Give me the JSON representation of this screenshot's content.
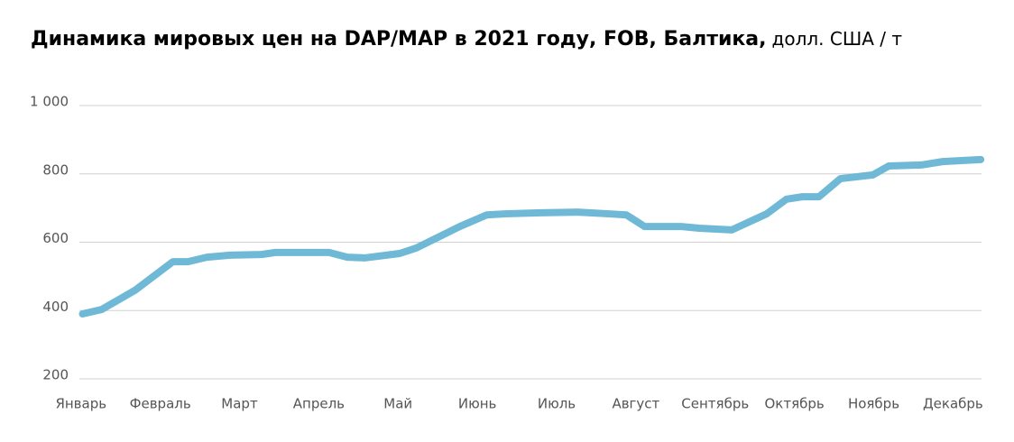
{
  "chart_data": {
    "type": "line",
    "title": "Динамика мировых цен на DAP/MAP в 2021 году, FOB, Балтика,",
    "unit": "долл. США / т",
    "x": [
      0.02,
      0.26,
      0.68,
      1.16,
      1.35,
      1.59,
      1.88,
      2.28,
      2.45,
      3.13,
      3.36,
      3.58,
      4.02,
      4.23,
      4.78,
      5.12,
      5.35,
      5.8,
      6.26,
      6.66,
      6.88,
      7.11,
      7.57,
      7.8,
      8.21,
      8.65,
      8.9,
      9.1,
      9.31,
      9.58,
      9.99,
      10.19,
      10.6,
      10.87,
      11.35
    ],
    "series": [
      {
        "color": "#6fb9d6",
        "values": [
          390,
          403,
          459,
          543,
          543,
          556,
          562,
          564,
          570,
          570,
          556,
          554,
          567,
          583,
          646,
          680,
          683,
          686,
          688,
          683,
          680,
          646,
          646,
          641,
          636,
          683,
          726,
          733,
          733,
          786,
          797,
          823,
          826,
          836,
          842
        ]
      }
    ],
    "xlim": [
      -0.02,
      11.36
    ],
    "xticks": [
      {
        "value": 0,
        "label": "Январь"
      },
      {
        "value": 1,
        "label": "Февраль"
      },
      {
        "value": 2,
        "label": "Март"
      },
      {
        "value": 3,
        "label": "Апрель"
      },
      {
        "value": 4,
        "label": "Май"
      },
      {
        "value": 5,
        "label": "Июнь"
      },
      {
        "value": 6,
        "label": "Июль"
      },
      {
        "value": 7,
        "label": "Август"
      },
      {
        "value": 8,
        "label": "Сентябрь"
      },
      {
        "value": 9,
        "label": "Октябрь"
      },
      {
        "value": 10,
        "label": "Ноябрь"
      },
      {
        "value": 11,
        "label": "Декабрь"
      }
    ],
    "ylim": [
      200,
      1000
    ],
    "yticks": [
      200,
      400,
      600,
      800,
      {
        "value": 1000,
        "label": "1 000"
      }
    ],
    "grid": true
  }
}
